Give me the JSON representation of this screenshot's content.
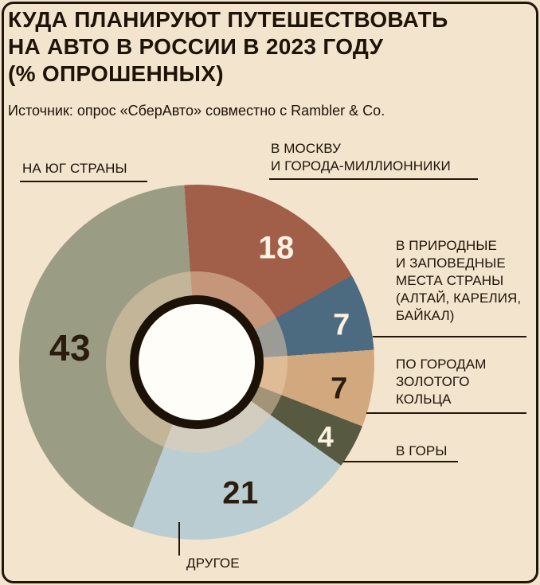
{
  "page": {
    "bg_color": "#f3e4cd",
    "text_color": "#1d1307",
    "title": "КУДА ПЛАНИРУЮТ ПУТЕШЕСТВОВАТЬ\nНА АВТО В РОССИИ В 2023 ГОДУ\n(% ОПРОШЕННЫХ)",
    "source": "Источник: опрос «СберАвто» совместно с Rambler & Co."
  },
  "chart_data": {
    "type": "pie",
    "donut": true,
    "title": "Куда планируют путешествовать на авто в России в 2023 году",
    "unit": "% опрошенных",
    "direction": "clockwise",
    "start_angle_deg": -4,
    "segments": [
      {
        "label": "В МОСКВУ И ГОРОДА-МИЛЛИОННИКИ",
        "value": 18,
        "color": "#a15e48"
      },
      {
        "label": "В ПРИРОДНЫЕ И ЗАПОВЕДНЫЕ МЕСТА СТРАНЫ (АЛТАЙ, КАРЕЛИЯ, БАЙКАЛ)",
        "value": 7,
        "color": "#4c6b81"
      },
      {
        "label": "ПО ГОРОДАМ ЗОЛОТОГО КОЛЬЦА",
        "value": 7,
        "color": "#d2a87e"
      },
      {
        "label": "В ГОРЫ",
        "value": 4,
        "color": "#575a41"
      },
      {
        "label": "ДРУГОЕ",
        "value": 21,
        "color": "#bacdd2"
      },
      {
        "label": "НА ЮГ СТРАНЫ",
        "value": 43,
        "color": "#9a9c83"
      }
    ]
  },
  "callouts": {
    "south": {
      "text": "НА ЮГ СТРАНЫ"
    },
    "moscow": {
      "text": "В МОСКВУ\nИ ГОРОДА-МИЛЛИОННИКИ"
    },
    "nature": {
      "text": "В ПРИРОДНЫЕ\nИ ЗАПОВЕДНЫЕ\nМЕСТА СТРАНЫ\n(АЛТАЙ, КАРЕЛИЯ,\nБАЙКАЛ)"
    },
    "golden": {
      "text": "ПО ГОРОДАМ\nЗОЛОТОГО\nКОЛЬЦА"
    },
    "mountains": {
      "text": "В ГОРЫ"
    },
    "other": {
      "text": "ДРУГОЕ"
    }
  }
}
